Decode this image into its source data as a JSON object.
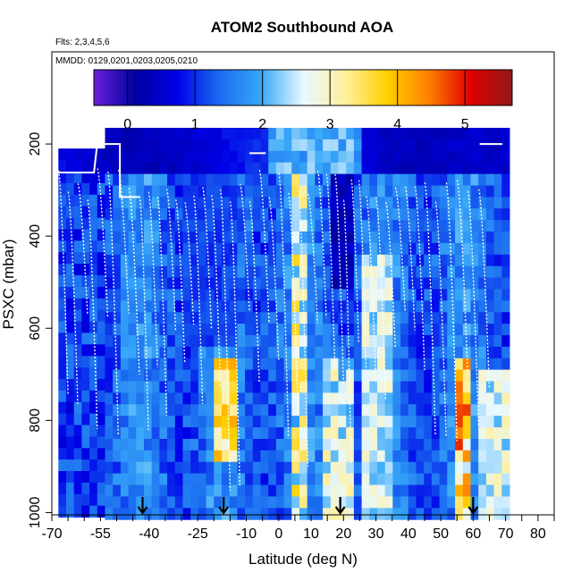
{
  "chart_data": {
    "type": "heatmap",
    "title": "ATOM2 Southbound AOA",
    "flights_note": "Flts: 2,3,4,5,6",
    "dates_note": "MMDD: 0129,0201,0203,0205,0210",
    "xlabel": "Latitude (deg N)",
    "ylabel": "PSXC (mbar)",
    "xlim": [
      -70,
      85
    ],
    "ylim": [
      1005,
      0
    ],
    "x_ticks": [
      -70,
      -55,
      -40,
      -25,
      -10,
      0,
      10,
      20,
      30,
      40,
      50,
      60,
      70,
      80
    ],
    "x_minor_ticks": [
      -65,
      -60,
      -50,
      -45,
      -35,
      -30,
      -20,
      -15,
      -5,
      5,
      15,
      25,
      35,
      45,
      55,
      65,
      75,
      85
    ],
    "x_tick_labels": [
      "-70",
      "-55",
      "-40",
      "-25",
      "-10",
      "0",
      "10",
      "20",
      "30",
      "40",
      "50",
      "60",
      "70",
      "80"
    ],
    "y_ticks": [
      200,
      400,
      600,
      800,
      1000
    ],
    "y_tick_labels": [
      "200",
      "400",
      "600",
      "800",
      "1000"
    ],
    "colorbar": {
      "range": [
        -0.5,
        5.7
      ],
      "ticks": [
        0,
        1,
        2,
        3,
        4,
        5
      ],
      "tick_labels": [
        "0",
        "1",
        "2",
        "3",
        "4",
        "5"
      ],
      "colors": [
        "#6a20d8",
        "#0000a0",
        "#0000e8",
        "#1a6af0",
        "#38a8f8",
        "#e8f8ff",
        "#fff0a0",
        "#ffd000",
        "#ff8000",
        "#e00000",
        "#901818"
      ]
    },
    "profile_latitudes": [
      -68,
      -56,
      -43,
      -29,
      -18,
      -6,
      3,
      12,
      20,
      27,
      36,
      45,
      55,
      65
    ],
    "flight_track_note": "white lines trace aircraft profiles",
    "arrow_latitudes": [
      -42,
      -17,
      19,
      60
    ]
  }
}
